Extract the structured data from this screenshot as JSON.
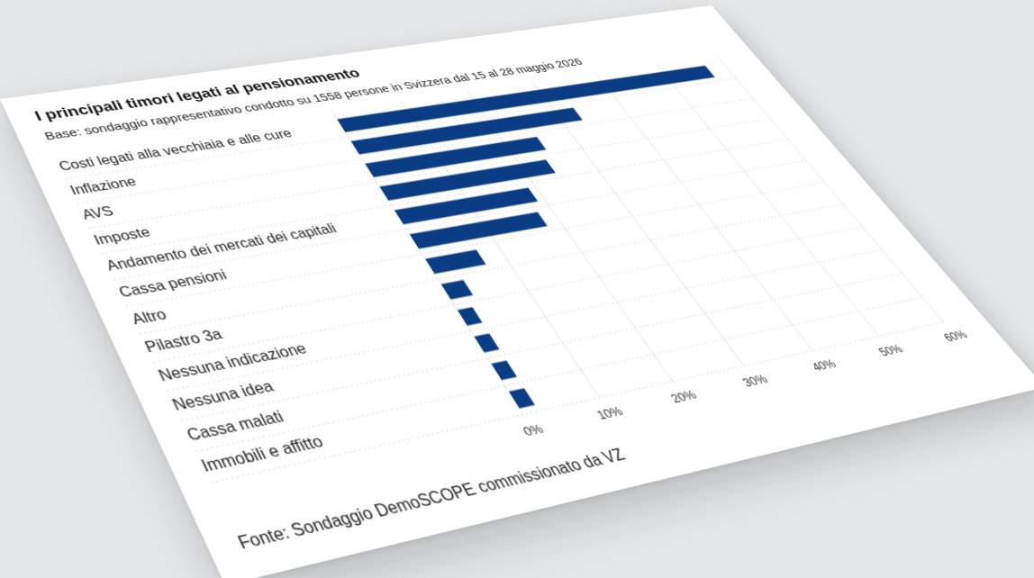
{
  "chart_data": {
    "type": "bar",
    "orientation": "horizontal",
    "title": "I principali timori legati al pensionamento",
    "subtitle": "Base: sondaggio rappresentativo condotto su 1558 persone in Svizzera dal 15 al 28 maggio 2026",
    "source": "Fonte: Sondaggio DemoSCOPE commissionato da VZ",
    "categories": [
      "Costi legati alla vecchiaia e alle cure",
      "Inflazione",
      "AVS",
      "Imposte",
      "Andamento dei mercati dei capitali",
      "Cassa pensioni",
      "Altro",
      "Pilastro 3a",
      "Nessuna indicazione",
      "Nessuna idea",
      "Cassa malati",
      "Immobili e affitto"
    ],
    "values": [
      57,
      33,
      25,
      24,
      19,
      18,
      7,
      3,
      2,
      2,
      2,
      2
    ],
    "xlim": [
      0,
      60
    ],
    "xticks": [
      "0%",
      "10%",
      "20%",
      "30%",
      "40%",
      "50%",
      "60%"
    ],
    "grid": true,
    "bar_color": "#0b3d84"
  }
}
